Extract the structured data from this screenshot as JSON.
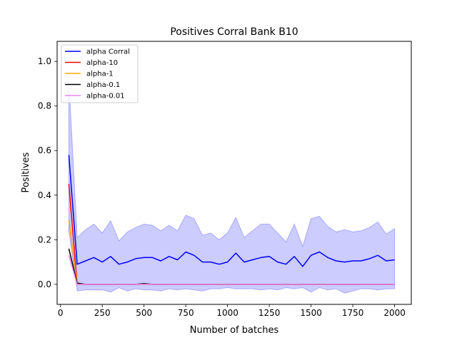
{
  "chart_data": {
    "type": "line",
    "title": "Positives Corral Bank B10",
    "xlabel": "Number of batches",
    "ylabel": "Positives",
    "xlim": [
      -20,
      2100
    ],
    "ylim": [
      -0.09,
      1.09
    ],
    "xticks": [
      0,
      250,
      500,
      750,
      1000,
      1250,
      1500,
      1750,
      2000
    ],
    "yticks": [
      0.0,
      0.2,
      0.4,
      0.6,
      0.8,
      1.0
    ],
    "xtick_labels": [
      "0",
      "250",
      "500",
      "750",
      "1000",
      "1250",
      "1500",
      "1750",
      "2000"
    ],
    "ytick_labels": [
      "0.0",
      "0.2",
      "0.4",
      "0.6",
      "0.8",
      "1.0"
    ],
    "grid": false,
    "legend_position": "top-left",
    "series": [
      {
        "name": "alpha Corral",
        "color": "#0000ff",
        "x": [
          50,
          100,
          150,
          200,
          250,
          300,
          350,
          400,
          450,
          500,
          550,
          600,
          650,
          700,
          750,
          800,
          850,
          900,
          950,
          1000,
          1050,
          1100,
          1150,
          1200,
          1250,
          1300,
          1350,
          1400,
          1450,
          1500,
          1550,
          1600,
          1650,
          1700,
          1750,
          1800,
          1850,
          1900,
          1950,
          2000
        ],
        "y": [
          0.58,
          0.09,
          0.105,
          0.12,
          0.1,
          0.125,
          0.09,
          0.1,
          0.115,
          0.12,
          0.12,
          0.105,
          0.125,
          0.11,
          0.145,
          0.13,
          0.1,
          0.1,
          0.09,
          0.1,
          0.14,
          0.1,
          0.11,
          0.12,
          0.125,
          0.1,
          0.09,
          0.125,
          0.08,
          0.13,
          0.145,
          0.12,
          0.105,
          0.1,
          0.105,
          0.105,
          0.115,
          0.13,
          0.105,
          0.11
        ],
        "upper": [
          0.92,
          0.21,
          0.245,
          0.27,
          0.23,
          0.285,
          0.195,
          0.235,
          0.255,
          0.27,
          0.265,
          0.24,
          0.265,
          0.24,
          0.31,
          0.295,
          0.22,
          0.23,
          0.2,
          0.23,
          0.3,
          0.21,
          0.24,
          0.27,
          0.27,
          0.23,
          0.19,
          0.27,
          0.17,
          0.295,
          0.305,
          0.26,
          0.235,
          0.245,
          0.235,
          0.24,
          0.255,
          0.28,
          0.225,
          0.25
        ],
        "lower": [
          0.24,
          -0.03,
          -0.025,
          -0.025,
          -0.025,
          -0.035,
          -0.015,
          -0.03,
          -0.02,
          -0.025,
          -0.025,
          -0.03,
          -0.02,
          -0.025,
          -0.02,
          -0.025,
          -0.03,
          -0.02,
          -0.02,
          -0.015,
          -0.02,
          -0.02,
          -0.02,
          -0.025,
          -0.02,
          -0.025,
          -0.015,
          -0.02,
          -0.015,
          -0.035,
          -0.015,
          -0.025,
          -0.02,
          -0.04,
          -0.03,
          -0.02,
          -0.02,
          -0.025,
          -0.02,
          -0.02
        ]
      },
      {
        "name": "alpha-10",
        "color": "#ff0000",
        "x": [
          50,
          100,
          150,
          200,
          250,
          300,
          350,
          400,
          450,
          500,
          550,
          600,
          650,
          700,
          750,
          800,
          850,
          900,
          950,
          1000,
          1050,
          1100,
          1150,
          1200,
          1250,
          1300,
          1350,
          1400,
          1450,
          1500,
          1550,
          1600,
          1650,
          1700,
          1750,
          1800,
          1850,
          1900,
          1950,
          2000
        ],
        "y": [
          0.45,
          0.0,
          0.0,
          0.0,
          0.0,
          0.0,
          0.0,
          0.0,
          0.0,
          0.0,
          0.0,
          0.0,
          0.0,
          0.0,
          0.0,
          0.0,
          0.0,
          0.0,
          0.0,
          0.0,
          0.0,
          0.0,
          0.0,
          0.0,
          0.0,
          0.0,
          0.0,
          0.0,
          0.0,
          0.0,
          0.0,
          0.0,
          0.0,
          0.0,
          0.0,
          0.0,
          0.0,
          0.0,
          0.0,
          0.0
        ]
      },
      {
        "name": "alpha-1",
        "color": "#ffa500",
        "x": [
          50,
          100,
          150,
          200,
          250,
          300,
          350,
          400,
          450,
          500,
          550,
          600,
          650,
          700,
          750,
          800,
          850,
          900,
          950,
          1000,
          1050,
          1100,
          1150,
          1200,
          1250,
          1300,
          1350,
          1400,
          1450,
          1500,
          1550,
          1600,
          1650,
          1700,
          1750,
          1800,
          1850,
          1900,
          1950,
          2000
        ],
        "y": [
          0.29,
          0.0,
          0.0,
          0.0,
          0.0,
          0.0,
          0.0,
          0.0,
          0.0,
          0.0,
          0.0,
          0.0,
          0.0,
          0.0,
          0.0,
          0.0,
          0.0,
          0.0,
          0.0,
          0.0,
          0.0,
          0.0,
          0.0,
          0.0,
          0.0,
          0.0,
          0.0,
          0.0,
          0.0,
          0.0,
          0.0,
          0.0,
          0.0,
          0.0,
          0.0,
          0.0,
          0.0,
          0.0,
          0.0,
          0.0
        ]
      },
      {
        "name": "alpha-0.1",
        "color": "#000000",
        "x": [
          50,
          100,
          150,
          200,
          250,
          300,
          350,
          400,
          450,
          500,
          550,
          600,
          650,
          700,
          750,
          800,
          850,
          900,
          950,
          1000,
          1050,
          1100,
          1150,
          1200,
          1250,
          1300,
          1350,
          1400,
          1450,
          1500,
          1550,
          1600,
          1650,
          1700,
          1750,
          1800,
          1850,
          1900,
          1950,
          2000
        ],
        "y": [
          0.16,
          0.005,
          0.0,
          0.0,
          0.0,
          0.0,
          0.0,
          0.0,
          0.0,
          0.003,
          0.0,
          0.0,
          0.0,
          0.0,
          0.0,
          0.0,
          0.0,
          0.0,
          0.0,
          0.0,
          0.0,
          0.0,
          0.0,
          0.0,
          0.0,
          0.0,
          0.0,
          0.0,
          0.0,
          0.0,
          0.0,
          0.0,
          0.0,
          0.0,
          0.0,
          0.0,
          0.0,
          0.0,
          0.0,
          0.0
        ]
      },
      {
        "name": "alpha-0.01",
        "color": "#ee82ee",
        "x": [
          50,
          100,
          150,
          200,
          250,
          300,
          350,
          400,
          450,
          500,
          550,
          600,
          650,
          700,
          750,
          800,
          850,
          900,
          950,
          1000,
          1050,
          1100,
          1150,
          1200,
          1250,
          1300,
          1350,
          1400,
          1450,
          1500,
          1550,
          1600,
          1650,
          1700,
          1750,
          1800,
          1850,
          1900,
          1950,
          2000
        ],
        "y": [
          0.13,
          0.0,
          0.0,
          0.0,
          0.0,
          0.0,
          0.0,
          0.0,
          0.0,
          0.0,
          0.0,
          0.0,
          0.0,
          0.0,
          0.0,
          0.0,
          0.0,
          0.0,
          0.0,
          0.0,
          0.0,
          0.0,
          0.0,
          0.0,
          0.0,
          0.0,
          0.0,
          0.0,
          0.0,
          0.0,
          0.0,
          0.0,
          0.0,
          0.0,
          0.0,
          0.0,
          0.0,
          0.0,
          0.0,
          0.0
        ]
      }
    ]
  }
}
